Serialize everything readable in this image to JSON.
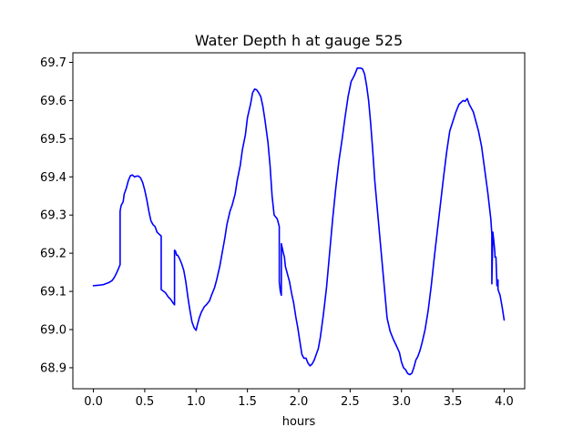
{
  "chart_data": {
    "type": "line",
    "title": "Water Depth h at gauge 525",
    "xlabel": "hours",
    "ylabel": "",
    "xlim": [
      -0.2,
      4.2
    ],
    "ylim": [
      68.845,
      69.725
    ],
    "x_ticks": [
      0.0,
      0.5,
      1.0,
      1.5,
      2.0,
      2.5,
      3.0,
      3.5,
      4.0
    ],
    "x_tick_labels": [
      "0.0",
      "0.5",
      "1.0",
      "1.5",
      "2.0",
      "2.5",
      "3.0",
      "3.5",
      "4.0"
    ],
    "y_ticks": [
      68.9,
      69.0,
      69.1,
      69.2,
      69.3,
      69.4,
      69.5,
      69.6,
      69.7
    ],
    "y_tick_labels": [
      "68.9",
      "69.0",
      "69.1",
      "69.2",
      "69.3",
      "69.4",
      "69.5",
      "69.6",
      "69.7"
    ],
    "grid": false,
    "legend": "none",
    "series": [
      {
        "color": "#0000ff",
        "x": [
          0.0,
          0.05,
          0.1,
          0.15,
          0.18,
          0.2,
          0.22,
          0.24,
          0.26,
          0.26,
          0.27,
          0.28,
          0.29,
          0.3,
          0.32,
          0.34,
          0.36,
          0.38,
          0.4,
          0.42,
          0.44,
          0.46,
          0.48,
          0.5,
          0.52,
          0.54,
          0.56,
          0.58,
          0.6,
          0.62,
          0.64,
          0.66,
          0.66,
          0.7,
          0.73,
          0.75,
          0.78,
          0.79,
          0.79,
          0.8,
          0.81,
          0.82,
          0.84,
          0.86,
          0.88,
          0.9,
          0.92,
          0.94,
          0.96,
          0.98,
          1.0,
          1.01,
          1.03,
          1.05,
          1.08,
          1.1,
          1.13,
          1.15,
          1.18,
          1.2,
          1.23,
          1.25,
          1.28,
          1.3,
          1.33,
          1.35,
          1.38,
          1.4,
          1.43,
          1.45,
          1.48,
          1.5,
          1.53,
          1.55,
          1.57,
          1.59,
          1.61,
          1.63,
          1.65,
          1.67,
          1.7,
          1.72,
          1.74,
          1.76,
          1.79,
          1.81,
          1.81,
          1.82,
          1.83,
          1.83,
          1.85,
          1.86,
          1.87,
          1.89,
          1.91,
          1.93,
          1.95,
          1.97,
          1.99,
          2.01,
          2.03,
          2.05,
          2.07,
          2.09,
          2.11,
          2.13,
          2.15,
          2.17,
          2.19,
          2.21,
          2.24,
          2.27,
          2.3,
          2.33,
          2.36,
          2.39,
          2.42,
          2.45,
          2.48,
          2.51,
          2.54,
          2.57,
          2.6,
          2.62,
          2.64,
          2.66,
          2.68,
          2.7,
          2.72,
          2.74,
          2.77,
          2.8,
          2.83,
          2.86,
          2.89,
          2.92,
          2.95,
          2.98,
          3.0,
          3.02,
          3.04,
          3.06,
          3.08,
          3.1,
          3.12,
          3.14,
          3.16,
          3.18,
          3.2,
          3.23,
          3.26,
          3.29,
          3.32,
          3.35,
          3.38,
          3.41,
          3.44,
          3.47,
          3.5,
          3.53,
          3.56,
          3.58,
          3.6,
          3.62,
          3.64,
          3.66,
          3.68,
          3.7,
          3.72,
          3.75,
          3.78,
          3.81,
          3.84,
          3.87,
          3.88,
          3.88,
          3.89,
          3.9,
          3.91,
          3.91,
          3.92,
          3.93,
          3.94,
          3.94,
          3.96,
          3.98,
          4.0
        ],
        "y": [
          69.115,
          69.116,
          69.118,
          69.123,
          69.128,
          69.135,
          69.145,
          69.157,
          69.17,
          69.31,
          69.325,
          69.33,
          69.335,
          69.355,
          69.37,
          69.39,
          69.403,
          69.405,
          69.4,
          69.402,
          69.402,
          69.397,
          69.385,
          69.365,
          69.34,
          69.31,
          69.285,
          69.275,
          69.27,
          69.255,
          69.25,
          69.245,
          69.105,
          69.097,
          69.085,
          69.08,
          69.068,
          69.065,
          69.208,
          69.205,
          69.195,
          69.195,
          69.185,
          69.172,
          69.155,
          69.125,
          69.085,
          69.05,
          69.02,
          69.005,
          68.998,
          69.01,
          69.03,
          69.045,
          69.06,
          69.065,
          69.075,
          69.09,
          69.11,
          69.13,
          69.165,
          69.195,
          69.24,
          69.275,
          69.31,
          69.325,
          69.355,
          69.39,
          69.43,
          69.47,
          69.51,
          69.555,
          69.59,
          69.62,
          69.63,
          69.628,
          69.62,
          69.61,
          69.585,
          69.55,
          69.49,
          69.43,
          69.35,
          69.3,
          69.29,
          69.27,
          69.125,
          69.1,
          69.09,
          69.225,
          69.2,
          69.19,
          69.165,
          69.145,
          69.125,
          69.095,
          69.07,
          69.035,
          69.005,
          68.97,
          68.935,
          68.925,
          68.925,
          68.912,
          68.905,
          68.91,
          68.92,
          68.935,
          68.95,
          68.98,
          69.04,
          69.11,
          69.2,
          69.29,
          69.37,
          69.44,
          69.495,
          69.555,
          69.61,
          69.65,
          69.665,
          69.685,
          69.685,
          69.683,
          69.67,
          69.64,
          69.6,
          69.54,
          69.47,
          69.39,
          69.3,
          69.21,
          69.12,
          69.03,
          68.995,
          68.975,
          68.958,
          68.94,
          68.915,
          68.9,
          68.895,
          68.885,
          68.882,
          68.885,
          68.9,
          68.92,
          68.93,
          68.945,
          68.965,
          69.0,
          69.05,
          69.115,
          69.19,
          69.26,
          69.33,
          69.4,
          69.465,
          69.52,
          69.545,
          69.57,
          69.59,
          69.595,
          69.6,
          69.598,
          69.605,
          69.59,
          69.58,
          69.57,
          69.55,
          69.52,
          69.48,
          69.42,
          69.36,
          69.29,
          69.25,
          69.12,
          69.255,
          69.23,
          69.2,
          69.19,
          69.19,
          69.115,
          69.13,
          69.105,
          69.09,
          69.06,
          69.025
        ]
      }
    ]
  }
}
